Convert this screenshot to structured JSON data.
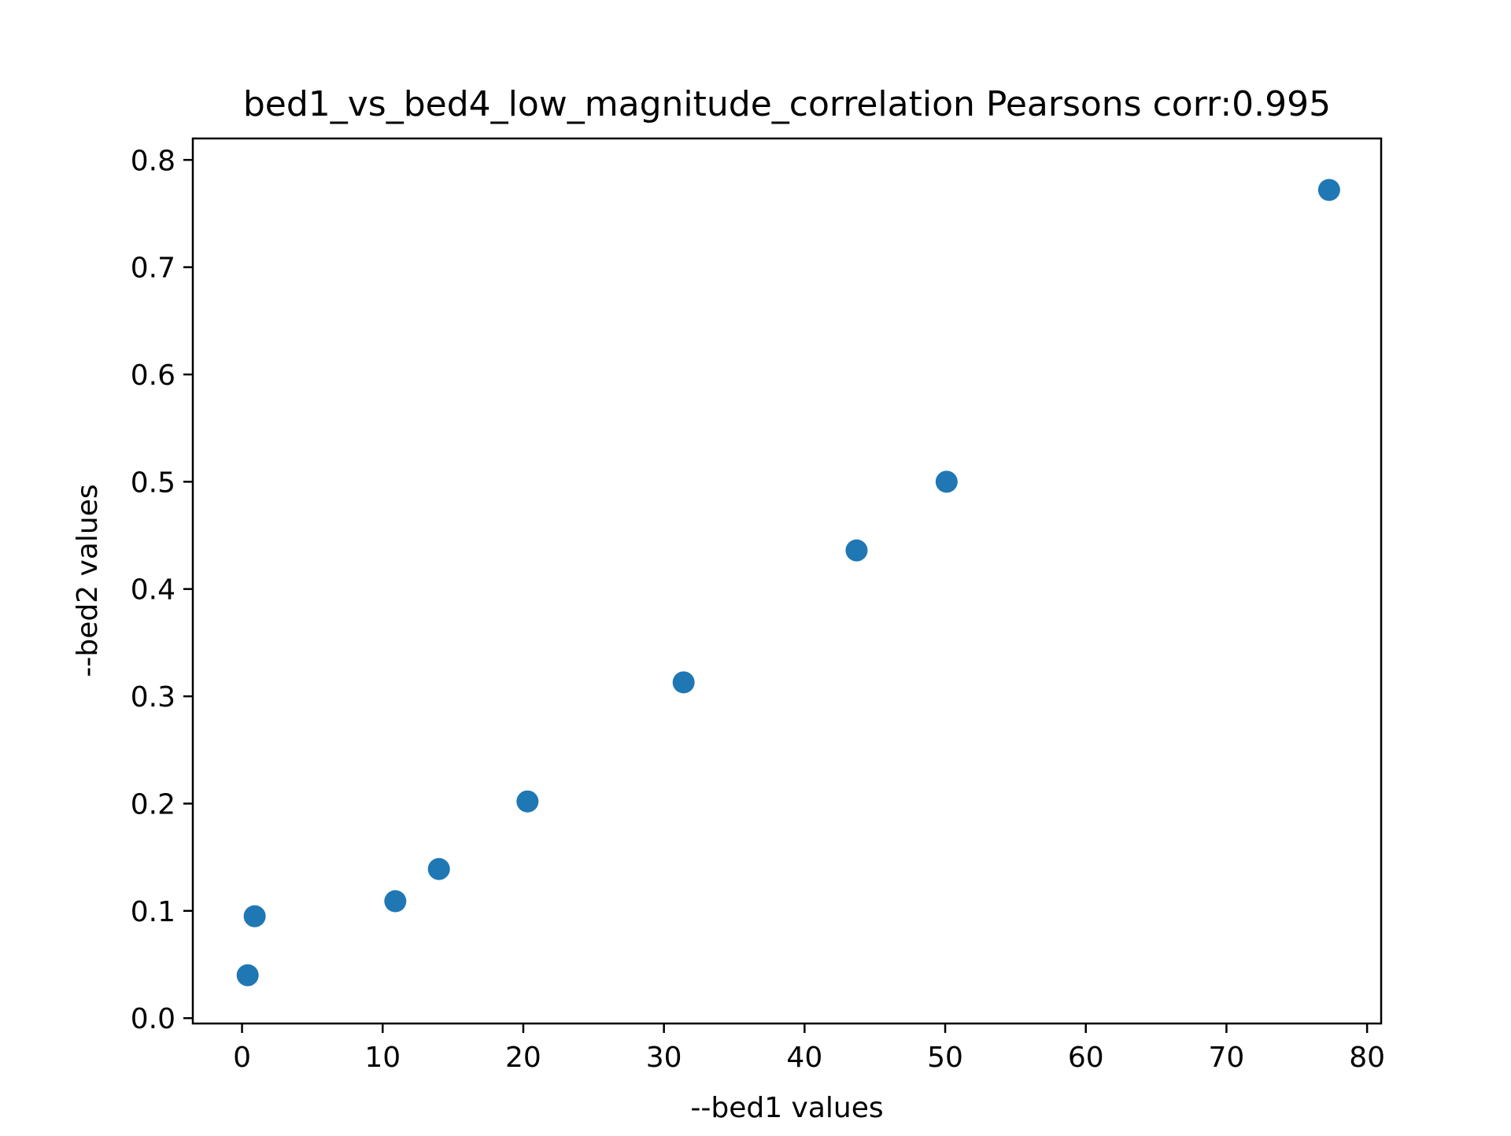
{
  "chart_data": {
    "type": "scatter",
    "title": "bed1_vs_bed4_low_magnitude_correlation Pearsons corr:0.995",
    "xlabel": "--bed1 values",
    "ylabel": "--bed2 values",
    "xlim": [
      -3.5,
      81
    ],
    "ylim": [
      -0.005,
      0.82
    ],
    "xticks": [
      0,
      10,
      20,
      30,
      40,
      50,
      60,
      70,
      80
    ],
    "xtick_labels": [
      "0",
      "10",
      "20",
      "30",
      "40",
      "50",
      "60",
      "70",
      "80"
    ],
    "yticks": [
      0.0,
      0.1,
      0.2,
      0.3,
      0.4,
      0.5,
      0.6,
      0.7,
      0.8
    ],
    "ytick_labels": [
      "0.0",
      "0.1",
      "0.2",
      "0.3",
      "0.4",
      "0.5",
      "0.6",
      "0.7",
      "0.8"
    ],
    "grid": false,
    "legend": "none",
    "marker_color": "#1f77b4",
    "series": [
      {
        "points": [
          {
            "x": 0.4,
            "y": 0.04
          },
          {
            "x": 0.9,
            "y": 0.095
          },
          {
            "x": 10.9,
            "y": 0.109
          },
          {
            "x": 14.0,
            "y": 0.139
          },
          {
            "x": 20.3,
            "y": 0.202
          },
          {
            "x": 31.4,
            "y": 0.313
          },
          {
            "x": 43.7,
            "y": 0.436
          },
          {
            "x": 50.1,
            "y": 0.5
          },
          {
            "x": 77.3,
            "y": 0.772
          }
        ]
      }
    ]
  }
}
